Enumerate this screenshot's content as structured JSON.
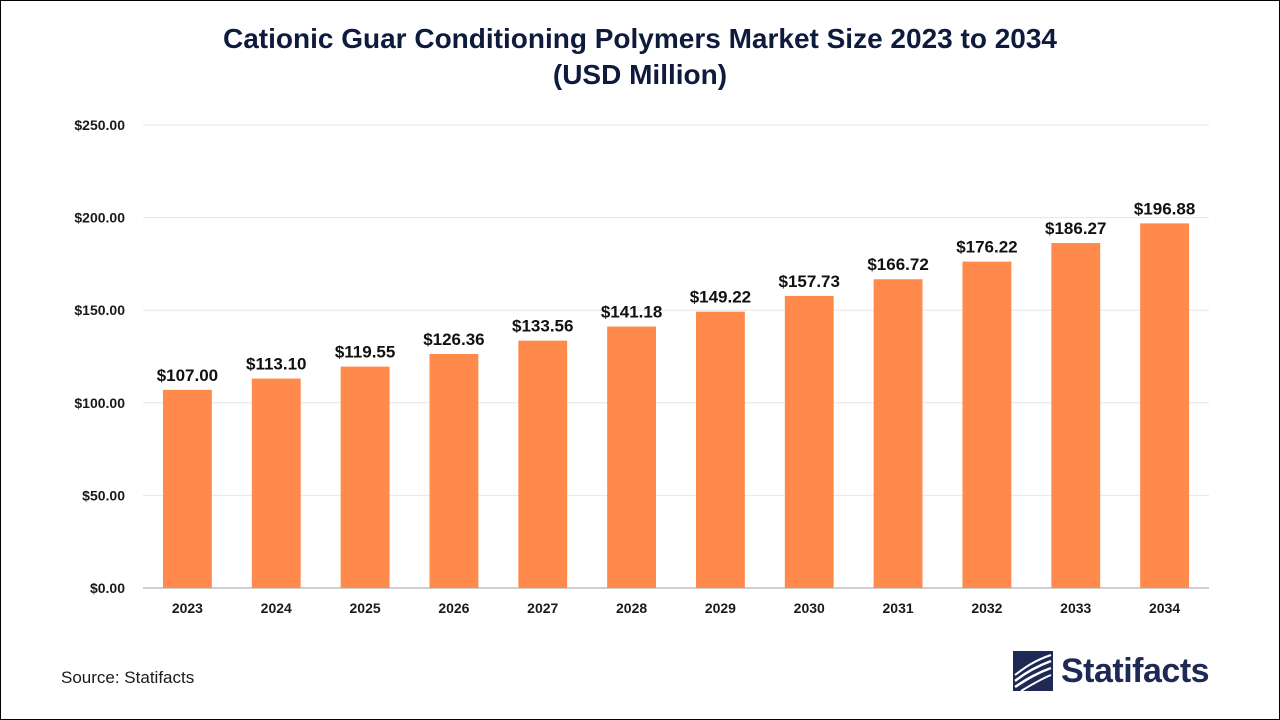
{
  "chart_data": {
    "type": "bar",
    "title_lines": [
      "Cationic Guar Conditioning Polymers Market Size 2023 to 2034",
      "(USD Million)"
    ],
    "categories": [
      "2023",
      "2024",
      "2025",
      "2026",
      "2027",
      "2028",
      "2029",
      "2030",
      "2031",
      "2032",
      "2033",
      "2034"
    ],
    "values": [
      107.0,
      113.1,
      119.55,
      126.36,
      133.56,
      141.18,
      149.22,
      157.73,
      166.72,
      176.22,
      186.27,
      196.88
    ],
    "value_labels": [
      "$107.00",
      "$113.10",
      "$119.55",
      "$126.36",
      "$133.56",
      "$141.18",
      "$149.22",
      "$157.73",
      "$166.72",
      "$176.22",
      "$186.27",
      "$196.88"
    ],
    "ylim": [
      0,
      250
    ],
    "yticks": [
      0,
      50,
      100,
      150,
      200,
      250
    ],
    "ytick_labels": [
      "$0.00",
      "$50.00",
      "$100.00",
      "$150.00",
      "$200.00",
      "$250.00"
    ],
    "grid": true,
    "bar_color": "#ff8a4c",
    "legend": "none"
  },
  "footer": {
    "source": "Source: Statifacts",
    "logo_text": "Statifacts",
    "logo_color": "#1e2a55",
    "logo_icon": "statifacts-logo-icon"
  }
}
